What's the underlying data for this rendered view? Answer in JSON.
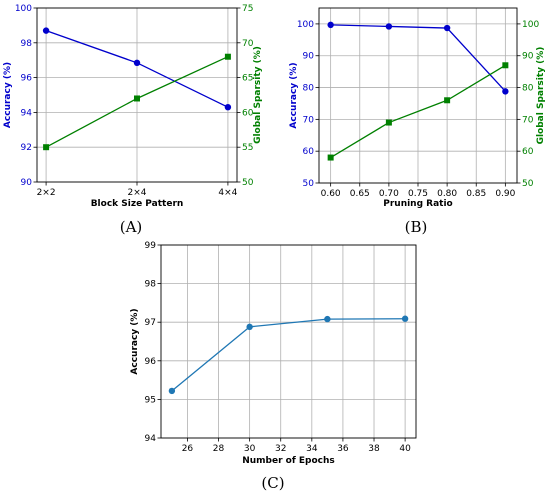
{
  "chart_data": [
    {
      "panel_label": "(A)",
      "type": "line",
      "categories": [
        "2×2",
        "2×4",
        "4×4"
      ],
      "xlabel": "Block Size Pattern",
      "series": [
        {
          "name": "Accuracy (%)",
          "axis": "left",
          "color": "#0000cc",
          "marker": "circle",
          "values": [
            98.7,
            96.85,
            94.3
          ]
        },
        {
          "name": "Global Sparsity (%)",
          "axis": "right",
          "color": "#008000",
          "marker": "square",
          "values": [
            55,
            62,
            68
          ]
        }
      ],
      "ylabel": "Accuracy (%)",
      "ylim": [
        90,
        100
      ],
      "yticks": [
        90,
        92,
        94,
        96,
        98,
        100
      ],
      "y2label": "Global Sparsity (%)",
      "y2lim": [
        50,
        75
      ],
      "y2ticks": [
        50,
        55,
        60,
        65,
        70,
        75
      ],
      "grid": true
    },
    {
      "panel_label": "(B)",
      "type": "line",
      "xlabel": "Pruning Ratio",
      "x": [
        0.6,
        0.7,
        0.8,
        0.9
      ],
      "xlim": [
        0.58,
        0.92
      ],
      "xticks": [
        "0.60",
        "0.65",
        "0.70",
        "0.75",
        "0.80",
        "0.85",
        "0.90"
      ],
      "series": [
        {
          "name": "Accuracy (%)",
          "axis": "left",
          "color": "#0000cc",
          "marker": "circle",
          "values": [
            99.7,
            99.2,
            98.7,
            78.8
          ]
        },
        {
          "name": "Global Sparsity (%)",
          "axis": "right",
          "color": "#008000",
          "marker": "square",
          "values": [
            58,
            69,
            76,
            87
          ]
        }
      ],
      "ylabel": "Accuracy (%)",
      "ylim": [
        50,
        105
      ],
      "yticks": [
        50,
        60,
        70,
        80,
        90,
        100
      ],
      "y2label": "Global Sparsity (%)",
      "y2lim": [
        50,
        105
      ],
      "y2ticks": [
        50,
        60,
        70,
        80,
        90,
        100
      ],
      "grid": true
    },
    {
      "panel_label": "(C)",
      "type": "line",
      "xlabel": "Number of Epochs",
      "x": [
        25,
        30,
        35,
        40
      ],
      "xlim": [
        24.3,
        40.7
      ],
      "xticks": [
        26,
        28,
        30,
        32,
        34,
        36,
        38,
        40
      ],
      "series": [
        {
          "name": "Accuracy (%)",
          "axis": "left",
          "color": "#1f77b4",
          "marker": "circle",
          "values": [
            95.22,
            96.88,
            97.08,
            97.09
          ]
        }
      ],
      "ylabel": "Accuracy (%)",
      "ylim": [
        94,
        99
      ],
      "yticks": [
        94,
        95,
        96,
        97,
        98,
        99
      ],
      "grid": true
    }
  ]
}
